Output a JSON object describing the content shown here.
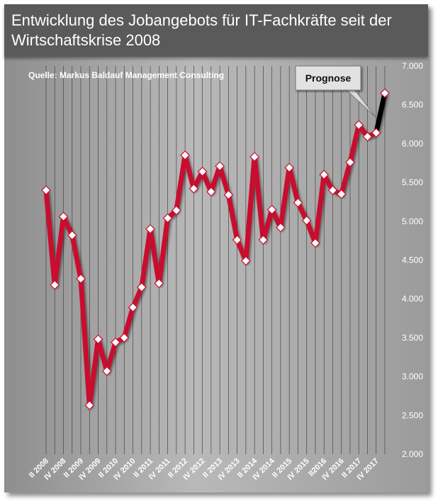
{
  "colors": {
    "series": "#c8102e",
    "forecast": "#000000",
    "marker_fill": "#ffffff",
    "marker_stroke": "#c8102e",
    "grid": "#444444"
  },
  "chart_data": {
    "type": "line",
    "title": "Entwicklung des Jobangebots für IT-Fachkräfte seit der\nWirtschaftskrise 2008",
    "source": "Quelle: Markus Baldauf Management Consulting",
    "annotation": "Prognose",
    "y_ticks": [
      "7.000",
      "6.500",
      "6.000",
      "5.500",
      "5.000",
      "4.500",
      "4.000",
      "3.500",
      "3.000",
      "2.500",
      "2.000"
    ],
    "ylim": [
      2000,
      7000
    ],
    "x_tick_labels": [
      {
        "index": 0,
        "label": "II 2008"
      },
      {
        "index": 2,
        "label": "IV 2008"
      },
      {
        "index": 4,
        "label": "II 2009"
      },
      {
        "index": 6,
        "label": "IV 2009"
      },
      {
        "index": 8,
        "label": "II 2010"
      },
      {
        "index": 10,
        "label": "IV 2010"
      },
      {
        "index": 12,
        "label": "II 2011"
      },
      {
        "index": 14,
        "label": "IV 2011"
      },
      {
        "index": 16,
        "label": "II 2012"
      },
      {
        "index": 18,
        "label": "IV 2012"
      },
      {
        "index": 20,
        "label": "II 2013"
      },
      {
        "index": 22,
        "label": "IV 2013"
      },
      {
        "index": 24,
        "label": "II 2014"
      },
      {
        "index": 26,
        "label": "IV 2014"
      },
      {
        "index": 28,
        "label": "II 2015"
      },
      {
        "index": 30,
        "label": "IV 2015"
      },
      {
        "index": 32,
        "label": "II2016"
      },
      {
        "index": 34,
        "label": "IV 2016"
      },
      {
        "index": 36,
        "label": "II 2017"
      },
      {
        "index": 38,
        "label": "IV 2017"
      }
    ],
    "values": [
      5400,
      4180,
      5060,
      4820,
      4260,
      2630,
      3480,
      3070,
      3440,
      3500,
      3890,
      4150,
      4900,
      4200,
      5040,
      5140,
      5850,
      5420,
      5640,
      5380,
      5710,
      5340,
      4760,
      4490,
      5830,
      4760,
      5150,
      4920,
      5690,
      5240,
      5010,
      4720,
      5600,
      5400,
      5350,
      5760,
      6240,
      6090,
      6140,
      6650
    ],
    "forecast_from_index": 38
  }
}
